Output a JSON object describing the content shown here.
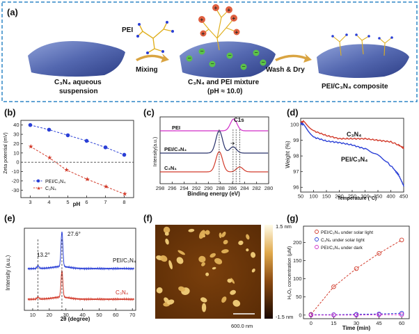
{
  "panel_a": {
    "label": "(a)",
    "pei_label": "PEI",
    "c3n4_susp_1": "C₃N₄ aqueous",
    "c3n4_susp_2": "suspension",
    "mixing": "Mixing",
    "mixture_1": "C₃N₄ and PEI mixture",
    "mixture_2": "(pH ≈ 10.0)",
    "wash": "Wash & Dry",
    "composite": "PEI/C₃N₄   composite"
  },
  "panel_f": {
    "label": "(f)",
    "scale_top": "1.5 nm",
    "scale_bottom": "-1.5 nm",
    "scale_len": "600.0 nm",
    "particles_count": 40
  },
  "colors": {
    "blue": "#2a3fd6",
    "red": "#d23a2a",
    "magenta": "#d02cc8",
    "dark": "#27306b",
    "border": "#2f86c6"
  },
  "chart_data": [
    {
      "id": "b",
      "label": "(b)",
      "type": "line",
      "xlabel": "pH",
      "ylabel": "Zeta potential (mV)",
      "xlim": [
        2.5,
        8.5
      ],
      "ylim": [
        -38,
        45
      ],
      "xticks": [
        3,
        4,
        5,
        6,
        7,
        8
      ],
      "yticks": [
        -30,
        -20,
        -10,
        0,
        10,
        20,
        30,
        40
      ],
      "series": [
        {
          "name": "PEI/C₃N₄",
          "x": [
            3,
            4,
            5,
            6,
            7,
            8
          ],
          "values": [
            40,
            35,
            29,
            23,
            16,
            8
          ]
        },
        {
          "name": "C₃N₄",
          "x": [
            3,
            4,
            4.9,
            6,
            7,
            8
          ],
          "values": [
            17,
            5,
            -8,
            -18,
            -26,
            -34
          ]
        }
      ]
    },
    {
      "id": "c",
      "label": "(c)",
      "type": "line",
      "annotation": "C1s",
      "xlabel": "Binding energy (eV)",
      "ylabel": "Intensity(a.u.)",
      "xlim": [
        298,
        280
      ],
      "xticks": [
        298,
        296,
        294,
        292,
        290,
        288,
        286,
        284,
        282,
        280
      ],
      "series": [
        {
          "name": "PEI",
          "peak": 285.8
        },
        {
          "name": "PEI/C₃N₄",
          "peak": 288.2,
          "shoulder": 285.9
        },
        {
          "name": "C₃N₄",
          "peak": 288.2,
          "shoulder": 284.8
        }
      ]
    },
    {
      "id": "d",
      "label": "(d)",
      "type": "line",
      "xlabel": "Temperature (°C)",
      "ylabel": "Weight (%)",
      "xlim": [
        50,
        450
      ],
      "ylim": [
        95.7,
        100.4
      ],
      "xticks": [
        50,
        100,
        150,
        200,
        250,
        300,
        350,
        400,
        450
      ],
      "yticks": [
        96,
        97,
        98,
        99,
        100
      ],
      "series": [
        {
          "name": "C₃N₄",
          "x": [
            50,
            60,
            100,
            150,
            200,
            250,
            300,
            350,
            400,
            430,
            450
          ],
          "values": [
            100.1,
            100.2,
            99.6,
            99.3,
            99.1,
            99.1,
            99.1,
            99.0,
            98.9,
            98.7,
            98.5
          ]
        },
        {
          "name": "PEI/C₃N₄",
          "x": [
            50,
            60,
            100,
            150,
            200,
            250,
            300,
            340,
            380,
            410,
            430,
            450
          ],
          "values": [
            100.1,
            100.0,
            99.2,
            98.95,
            98.85,
            98.7,
            98.45,
            98.15,
            97.7,
            97.2,
            96.8,
            96.1
          ]
        }
      ]
    },
    {
      "id": "e",
      "label": "(e)",
      "type": "line",
      "xlabel": "2θ (degree)",
      "ylabel": "Intensity (a.u.)",
      "xlim": [
        5,
        72
      ],
      "xticks": [
        10,
        20,
        30,
        40,
        50,
        60,
        70
      ],
      "peaks": [
        "13.2°",
        "27.6°"
      ],
      "series": [
        {
          "name": "PEI/C₃N₄",
          "peak": 27.6
        },
        {
          "name": "C₃N₄",
          "peak": 27.6
        }
      ]
    },
    {
      "id": "g",
      "label": "(g)",
      "type": "line",
      "xlabel": "Time (min)",
      "ylabel": "H₂O₂ concentration (μM)",
      "xlim": [
        -5,
        65
      ],
      "ylim": [
        -10,
        245
      ],
      "xticks": [
        0,
        15,
        30,
        45,
        60
      ],
      "yticks": [
        0,
        50,
        100,
        150,
        200
      ],
      "series": [
        {
          "name": "PEI/C₃N₄ under solar light",
          "x": [
            0,
            15,
            30,
            45,
            60
          ],
          "values": [
            2,
            78,
            128,
            170,
            207
          ]
        },
        {
          "name": "C₃N₄ under solar light",
          "x": [
            0,
            15,
            30,
            45,
            60
          ],
          "values": [
            1,
            1,
            2,
            3,
            5
          ]
        },
        {
          "name": "PEI/C₃N₄ under dark",
          "x": [
            0,
            15,
            30,
            45,
            60
          ],
          "values": [
            0,
            0,
            0,
            1,
            1
          ]
        }
      ]
    }
  ]
}
